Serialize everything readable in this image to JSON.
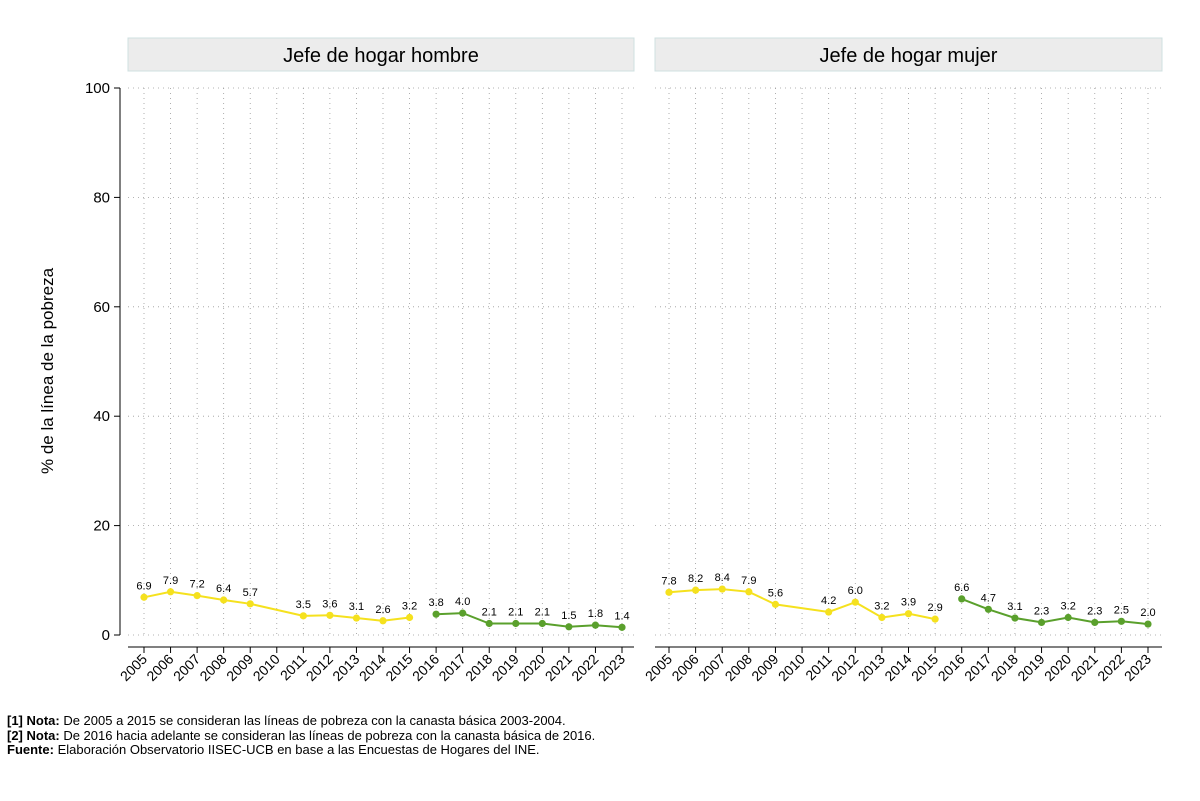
{
  "chart_data": {
    "type": "line",
    "ylabel": "% de la línea de la pobreza",
    "ylim": [
      0,
      100
    ],
    "yticks": [
      0,
      20,
      40,
      60,
      80,
      100
    ],
    "years": [
      "2005",
      "2006",
      "2007",
      "2008",
      "2009",
      "2010",
      "2011",
      "2012",
      "2013",
      "2014",
      "2015",
      "2016",
      "2017",
      "2018",
      "2019",
      "2020",
      "2021",
      "2022",
      "2023"
    ],
    "grid": true,
    "colors": {
      "series_2003_2004": "#f5e11e",
      "series_2016": "#5aa02c",
      "panel_header_bg": "#ececec",
      "panel_header_border": "#cfe0e0"
    },
    "panels": [
      {
        "title": "Jefe de hogar hombre",
        "series": [
          {
            "points": [
              {
                "x": "2005",
                "y": 6.9,
                "label": "6.9"
              },
              {
                "x": "2006",
                "y": 7.9,
                "label": "7.9"
              },
              {
                "x": "2007",
                "y": 7.2,
                "label": "7.2"
              },
              {
                "x": "2008",
                "y": 6.4,
                "label": "6.4"
              },
              {
                "x": "2009",
                "y": 5.7,
                "label": "5.7"
              },
              {
                "x": "2011",
                "y": 3.5,
                "label": "3.5"
              },
              {
                "x": "2012",
                "y": 3.6,
                "label": "3.6"
              },
              {
                "x": "2013",
                "y": 3.1,
                "label": "3.1"
              },
              {
                "x": "2014",
                "y": 2.6,
                "label": "2.6"
              },
              {
                "x": "2015",
                "y": 3.2,
                "label": "3.2"
              }
            ]
          },
          {
            "points": [
              {
                "x": "2016",
                "y": 3.8,
                "label": "3.8"
              },
              {
                "x": "2017",
                "y": 4.0,
                "label": "4.0"
              },
              {
                "x": "2018",
                "y": 2.1,
                "label": "2.1"
              },
              {
                "x": "2019",
                "y": 2.1,
                "label": "2.1"
              },
              {
                "x": "2020",
                "y": 2.1,
                "label": "2.1"
              },
              {
                "x": "2021",
                "y": 1.5,
                "label": "1.5"
              },
              {
                "x": "2022",
                "y": 1.8,
                "label": "1.8"
              },
              {
                "x": "2023",
                "y": 1.4,
                "label": "1.4"
              }
            ]
          }
        ]
      },
      {
        "title": "Jefe de hogar mujer",
        "series": [
          {
            "points": [
              {
                "x": "2005",
                "y": 7.8,
                "label": "7.8"
              },
              {
                "x": "2006",
                "y": 8.2,
                "label": "8.2"
              },
              {
                "x": "2007",
                "y": 8.4,
                "label": "8.4"
              },
              {
                "x": "2008",
                "y": 7.9,
                "label": "7.9"
              },
              {
                "x": "2009",
                "y": 5.6,
                "label": "5.6"
              },
              {
                "x": "2011",
                "y": 4.2,
                "label": "4.2"
              },
              {
                "x": "2012",
                "y": 6.0,
                "label": "6.0"
              },
              {
                "x": "2013",
                "y": 3.2,
                "label": "3.2"
              },
              {
                "x": "2014",
                "y": 3.9,
                "label": "3.9"
              },
              {
                "x": "2015",
                "y": 2.9,
                "label": "2.9"
              }
            ]
          },
          {
            "points": [
              {
                "x": "2016",
                "y": 6.6,
                "label": "6.6"
              },
              {
                "x": "2017",
                "y": 4.7,
                "label": "4.7"
              },
              {
                "x": "2018",
                "y": 3.1,
                "label": "3.1"
              },
              {
                "x": "2019",
                "y": 2.3,
                "label": "2.3"
              },
              {
                "x": "2020",
                "y": 3.2,
                "label": "3.2"
              },
              {
                "x": "2021",
                "y": 2.3,
                "label": "2.3"
              },
              {
                "x": "2022",
                "y": 2.5,
                "label": "2.5"
              },
              {
                "x": "2023",
                "y": 2.0,
                "label": "2.0"
              }
            ]
          }
        ]
      }
    ]
  },
  "notes": {
    "note1_label": "[1] Nota:",
    "note1_text": " De 2005 a 2015 se consideran las líneas de pobreza con la canasta básica 2003-2004.",
    "note2_label": "[2] Nota:",
    "note2_text": " De 2016 hacia adelante se consideran las líneas de pobreza con la canasta básica de 2016.",
    "source_label": "Fuente:",
    "source_text": " Elaboración Observatorio IISEC-UCB en base a las Encuestas de Hogares del INE."
  }
}
